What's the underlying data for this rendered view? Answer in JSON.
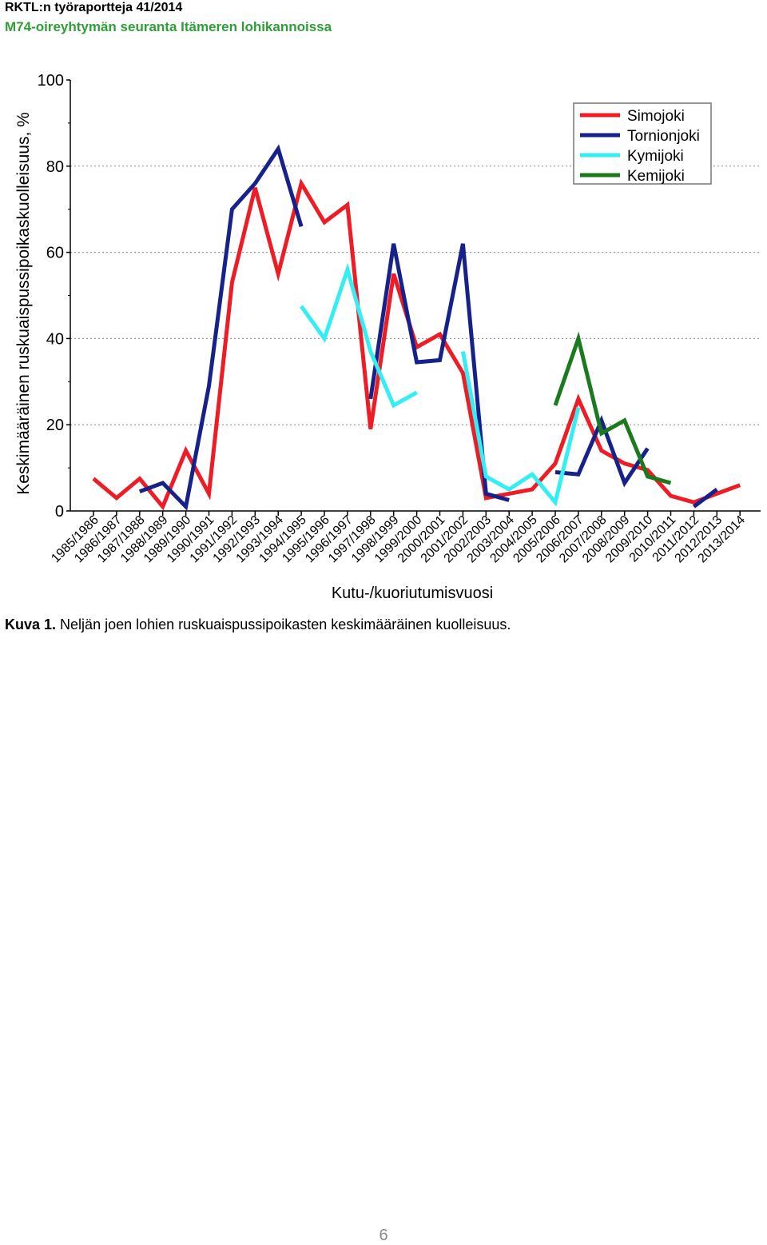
{
  "header": {
    "line1": "RKTL:n työraportteja 41/2014",
    "line2": "M74-oireyhtymän seuranta Itämeren lohikannoissa"
  },
  "chart_data": {
    "type": "line",
    "xlabel": "Kutu-/kuoriutumisvuosi",
    "ylabel": "Keskimääräinen ruskuaispussipoikaskuolleisuus, %",
    "ylim": [
      0,
      100
    ],
    "yticks": [
      0,
      20,
      40,
      60,
      80,
      100
    ],
    "grid": "horizontal dotted at 20, 40, 60, 80",
    "legend_position": "top-right",
    "categories": [
      "1985/1986",
      "1986/1987",
      "1987/1988",
      "1988/1989",
      "1989/1990",
      "1990/1991",
      "1991/1992",
      "1992/1993",
      "1993/1994",
      "1994/1995",
      "1995/1996",
      "1996/1997",
      "1997/1998",
      "1998/1999",
      "1999/2000",
      "2000/2001",
      "2001/2002",
      "2002/2003",
      "2003/2004",
      "2004/2005",
      "2005/2006",
      "2006/2007",
      "2007/2008",
      "2008/2009",
      "2009/2010",
      "2010/2011",
      "2011/2012",
      "2012/2013",
      "2013/2014"
    ],
    "series": [
      {
        "name": "Simojoki",
        "color": "#ee1c24",
        "values": [
          7.5,
          3,
          7.5,
          1,
          14,
          4,
          53,
          75,
          55,
          76,
          67,
          71,
          19,
          55,
          38,
          41,
          32,
          3,
          4,
          5,
          11,
          26,
          14,
          11,
          9.5,
          3.5,
          2,
          4,
          6
        ]
      },
      {
        "name": "Tornionjoki",
        "color": "#16228a",
        "values": [
          null,
          null,
          4.5,
          6.5,
          1,
          29,
          70,
          76,
          84,
          66,
          null,
          null,
          26,
          62,
          34.5,
          35,
          62,
          4,
          2.5,
          null,
          9,
          8.5,
          21,
          6.5,
          14.5,
          null,
          1,
          5,
          null
        ]
      },
      {
        "name": "Kymijoki",
        "color": "#33eef5",
        "values": [
          null,
          null,
          null,
          null,
          null,
          null,
          null,
          null,
          null,
          47.5,
          40,
          56,
          37,
          24.5,
          27.5,
          null,
          37,
          8,
          5,
          8.5,
          2,
          24,
          null,
          null,
          null,
          null,
          null,
          null,
          null
        ]
      },
      {
        "name": "Kemijoki",
        "color": "#1b7a1e",
        "values": [
          null,
          null,
          null,
          null,
          null,
          null,
          null,
          null,
          null,
          null,
          null,
          null,
          null,
          null,
          null,
          null,
          null,
          null,
          null,
          null,
          24.5,
          40,
          18,
          21,
          8,
          6.5,
          null,
          null,
          null
        ]
      }
    ]
  },
  "caption": {
    "label": "Kuva 1.",
    "text": "Neljän joen lohien ruskuaispussipoikasten keskimääräinen kuolleisuus."
  },
  "page_number": "6"
}
